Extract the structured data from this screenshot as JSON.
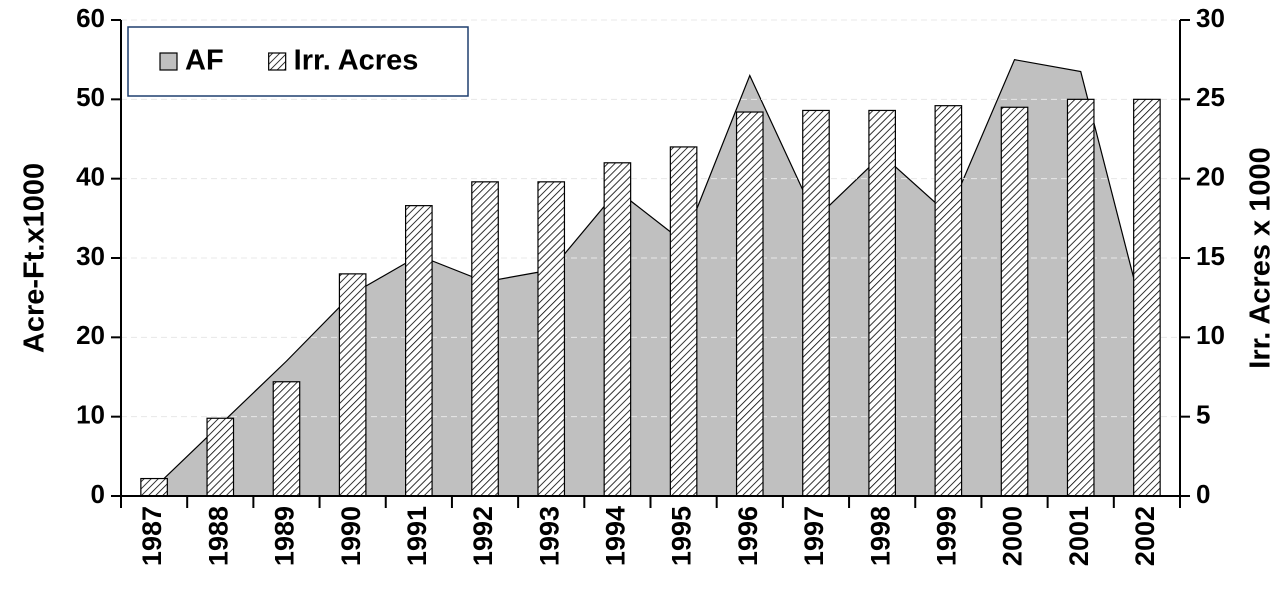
{
  "chart_data": {
    "type": "combo",
    "categories": [
      "1987",
      "1988",
      "1989",
      "1990",
      "1991",
      "1992",
      "1993",
      "1994",
      "1995",
      "1996",
      "1997",
      "1998",
      "1999",
      "2000",
      "2001",
      "2002"
    ],
    "series": [
      {
        "name": "AF",
        "type": "area",
        "axis": "y",
        "color": "#c0c0c0",
        "values": [
          1,
          9,
          17,
          25.5,
          30.3,
          27,
          28.5,
          38.5,
          32,
          53,
          35,
          43,
          35.5,
          55,
          53.5,
          21
        ]
      },
      {
        "name": "Irr. Acres",
        "type": "bar",
        "axis": "y2",
        "color": "#ffffff",
        "values": [
          1.1,
          4.9,
          7.2,
          14,
          18.3,
          19.8,
          19.8,
          21,
          22,
          24.2,
          24.3,
          24.3,
          24.6,
          24.5,
          25,
          25
        ]
      }
    ],
    "ylabel": "Acre-Ft.x1000",
    "y2label": "Irr. Acres x 1000",
    "ylim": [
      0,
      60
    ],
    "yticks": [
      0,
      10,
      20,
      30,
      40,
      50,
      60
    ],
    "y2lim": [
      0,
      30
    ],
    "y2ticks": [
      0,
      5,
      10,
      15,
      20,
      25,
      30
    ],
    "grid": true,
    "legend": "top-left"
  }
}
